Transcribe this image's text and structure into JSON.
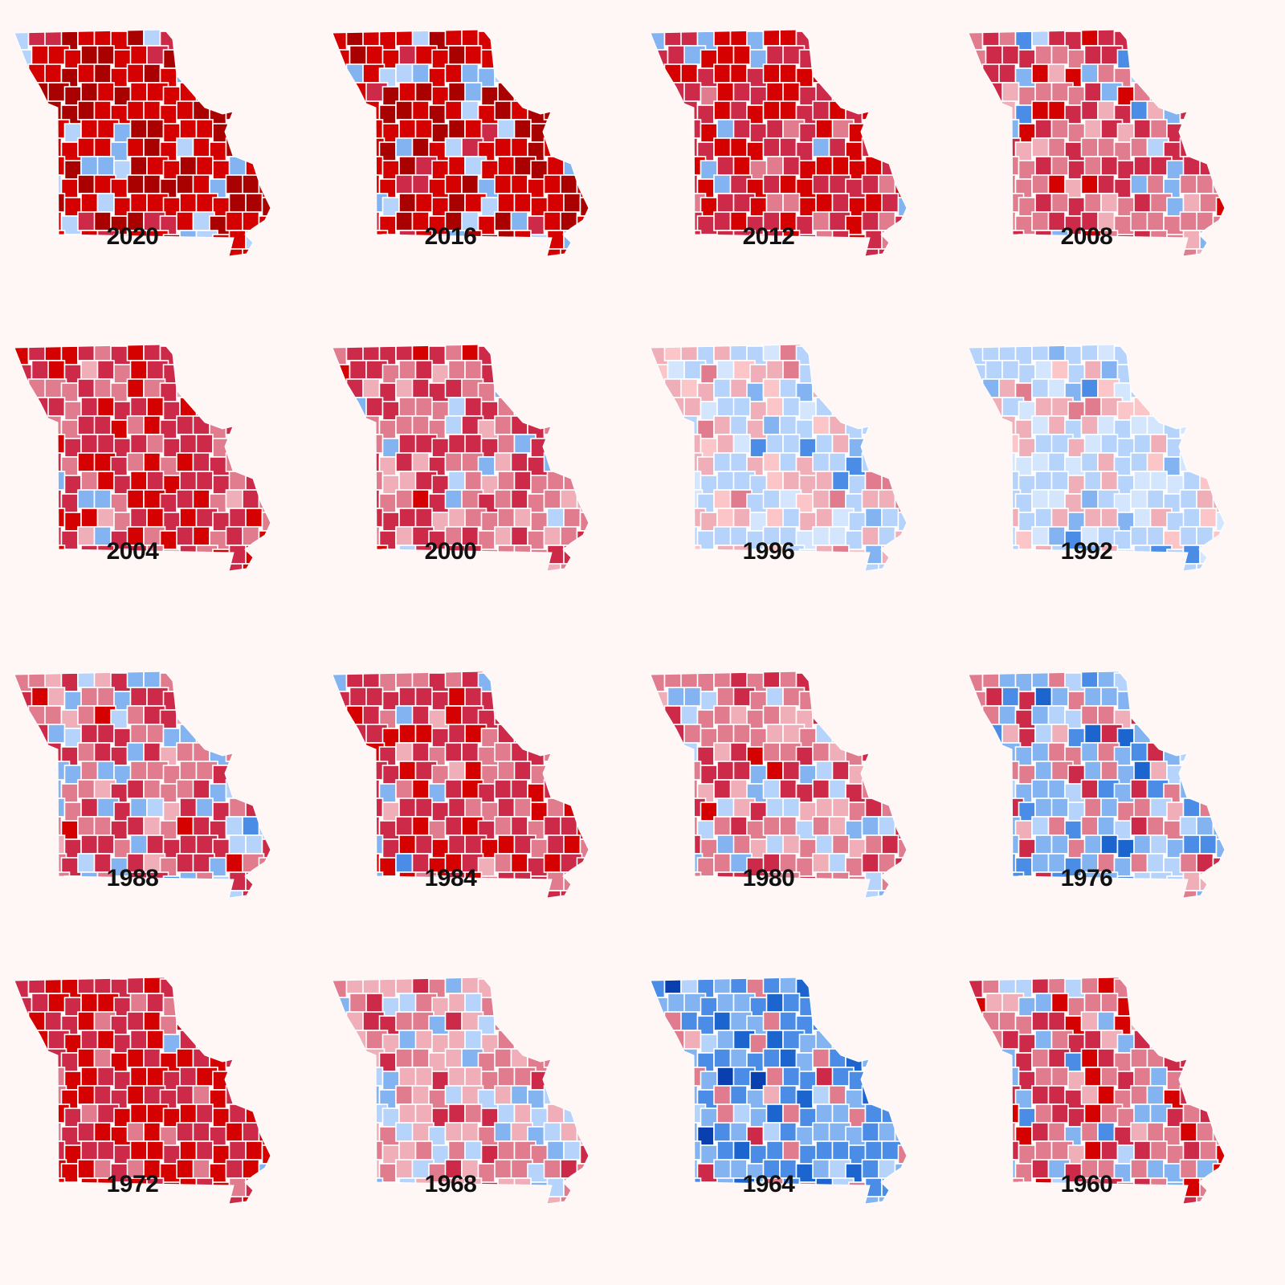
{
  "palette": [
    "#a90000",
    "#d50000",
    "#cc2a48",
    "#e07c8e",
    "#f0aeb8",
    "#fcc6c9",
    "#d4e6fd",
    "#b6d3fc",
    "#83b3f0",
    "#4a8ce6",
    "#1c65cf",
    "#0a3fb0"
  ],
  "maps": [
    {
      "year": "2020",
      "mix": [
        5,
        6,
        1,
        0,
        0,
        0,
        0,
        1,
        1,
        0,
        0,
        0
      ]
    },
    {
      "year": "2016",
      "mix": [
        4,
        7,
        1,
        0,
        0,
        0,
        0,
        1,
        1,
        0,
        0,
        0
      ]
    },
    {
      "year": "2012",
      "mix": [
        0,
        4,
        6,
        1,
        0,
        0,
        0,
        0,
        1,
        0,
        0,
        0
      ]
    },
    {
      "year": "2008",
      "mix": [
        0,
        1,
        5,
        5,
        1,
        0,
        0,
        0.5,
        1,
        0.3,
        0,
        0
      ]
    },
    {
      "year": "2004",
      "mix": [
        0,
        3,
        6,
        3,
        1,
        0,
        0,
        0,
        0.6,
        0,
        0,
        0
      ]
    },
    {
      "year": "2000",
      "mix": [
        0,
        0.6,
        5,
        5,
        2,
        0,
        0,
        0.6,
        1,
        0,
        0,
        0
      ]
    },
    {
      "year": "1996",
      "mix": [
        0,
        0,
        0,
        1,
        4,
        1,
        1,
        5,
        2,
        0.2,
        0,
        0
      ]
    },
    {
      "year": "1992",
      "mix": [
        0,
        0,
        0,
        0.2,
        3,
        1.5,
        3,
        6,
        1.5,
        0.3,
        0,
        0
      ]
    },
    {
      "year": "1988",
      "mix": [
        0,
        0.3,
        5,
        5,
        1,
        0,
        0,
        1,
        3,
        0.3,
        0,
        0
      ]
    },
    {
      "year": "1984",
      "mix": [
        0,
        3,
        7,
        3,
        0.3,
        0,
        0,
        0,
        0.5,
        0.2,
        0,
        0
      ]
    },
    {
      "year": "1980",
      "mix": [
        0,
        0.3,
        4,
        6,
        3,
        0,
        0,
        2,
        1.5,
        0,
        0,
        0
      ]
    },
    {
      "year": "1976",
      "mix": [
        0,
        0,
        1.5,
        3,
        1,
        0,
        0,
        2,
        5,
        2,
        0.5,
        0
      ]
    },
    {
      "year": "1972",
      "mix": [
        0,
        6,
        6,
        1.5,
        0,
        0,
        0,
        0,
        0.3,
        0,
        0,
        0
      ]
    },
    {
      "year": "1968",
      "mix": [
        0,
        0,
        2,
        4,
        5,
        0,
        0,
        3,
        1.5,
        0,
        0,
        0
      ]
    },
    {
      "year": "1964",
      "mix": [
        0,
        0,
        0.3,
        2,
        0.5,
        0,
        0,
        1,
        5,
        5,
        1.5,
        0.2
      ]
    },
    {
      "year": "1960",
      "mix": [
        0,
        1.5,
        5,
        5,
        1,
        0,
        0,
        0.5,
        2,
        0.5,
        0,
        0
      ]
    }
  ]
}
